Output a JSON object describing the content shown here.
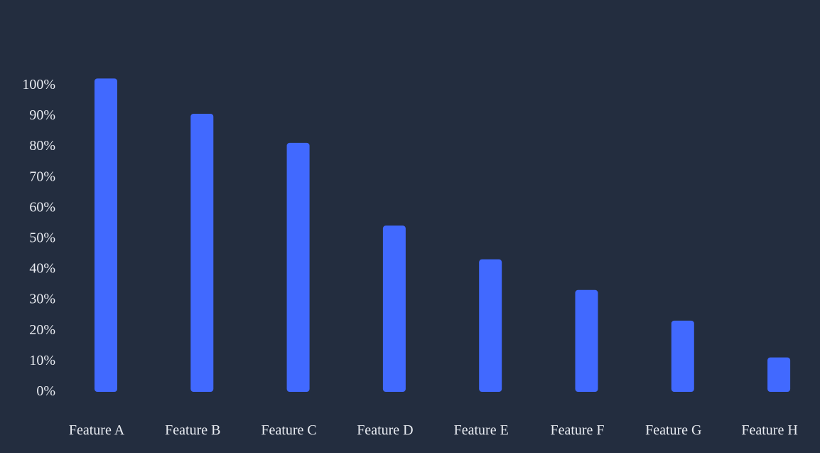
{
  "colors": {
    "background": "#232d3f",
    "bar": "#4169ff",
    "text": "#e9ecf2"
  },
  "chart_data": {
    "type": "bar",
    "categories": [
      "Feature A",
      "Feature B",
      "Feature C",
      "Feature D",
      "Feature E",
      "Feature F",
      "Feature G",
      "Feature H"
    ],
    "values": [
      102,
      90.5,
      81,
      54,
      43,
      33,
      23,
      11
    ],
    "y_ticks": [
      "0%",
      "10%",
      "20%",
      "30%",
      "40%",
      "50%",
      "60%",
      "70%",
      "80%",
      "90%",
      "100%"
    ],
    "ylim": [
      0,
      100
    ],
    "grid": false,
    "legend": "none"
  }
}
